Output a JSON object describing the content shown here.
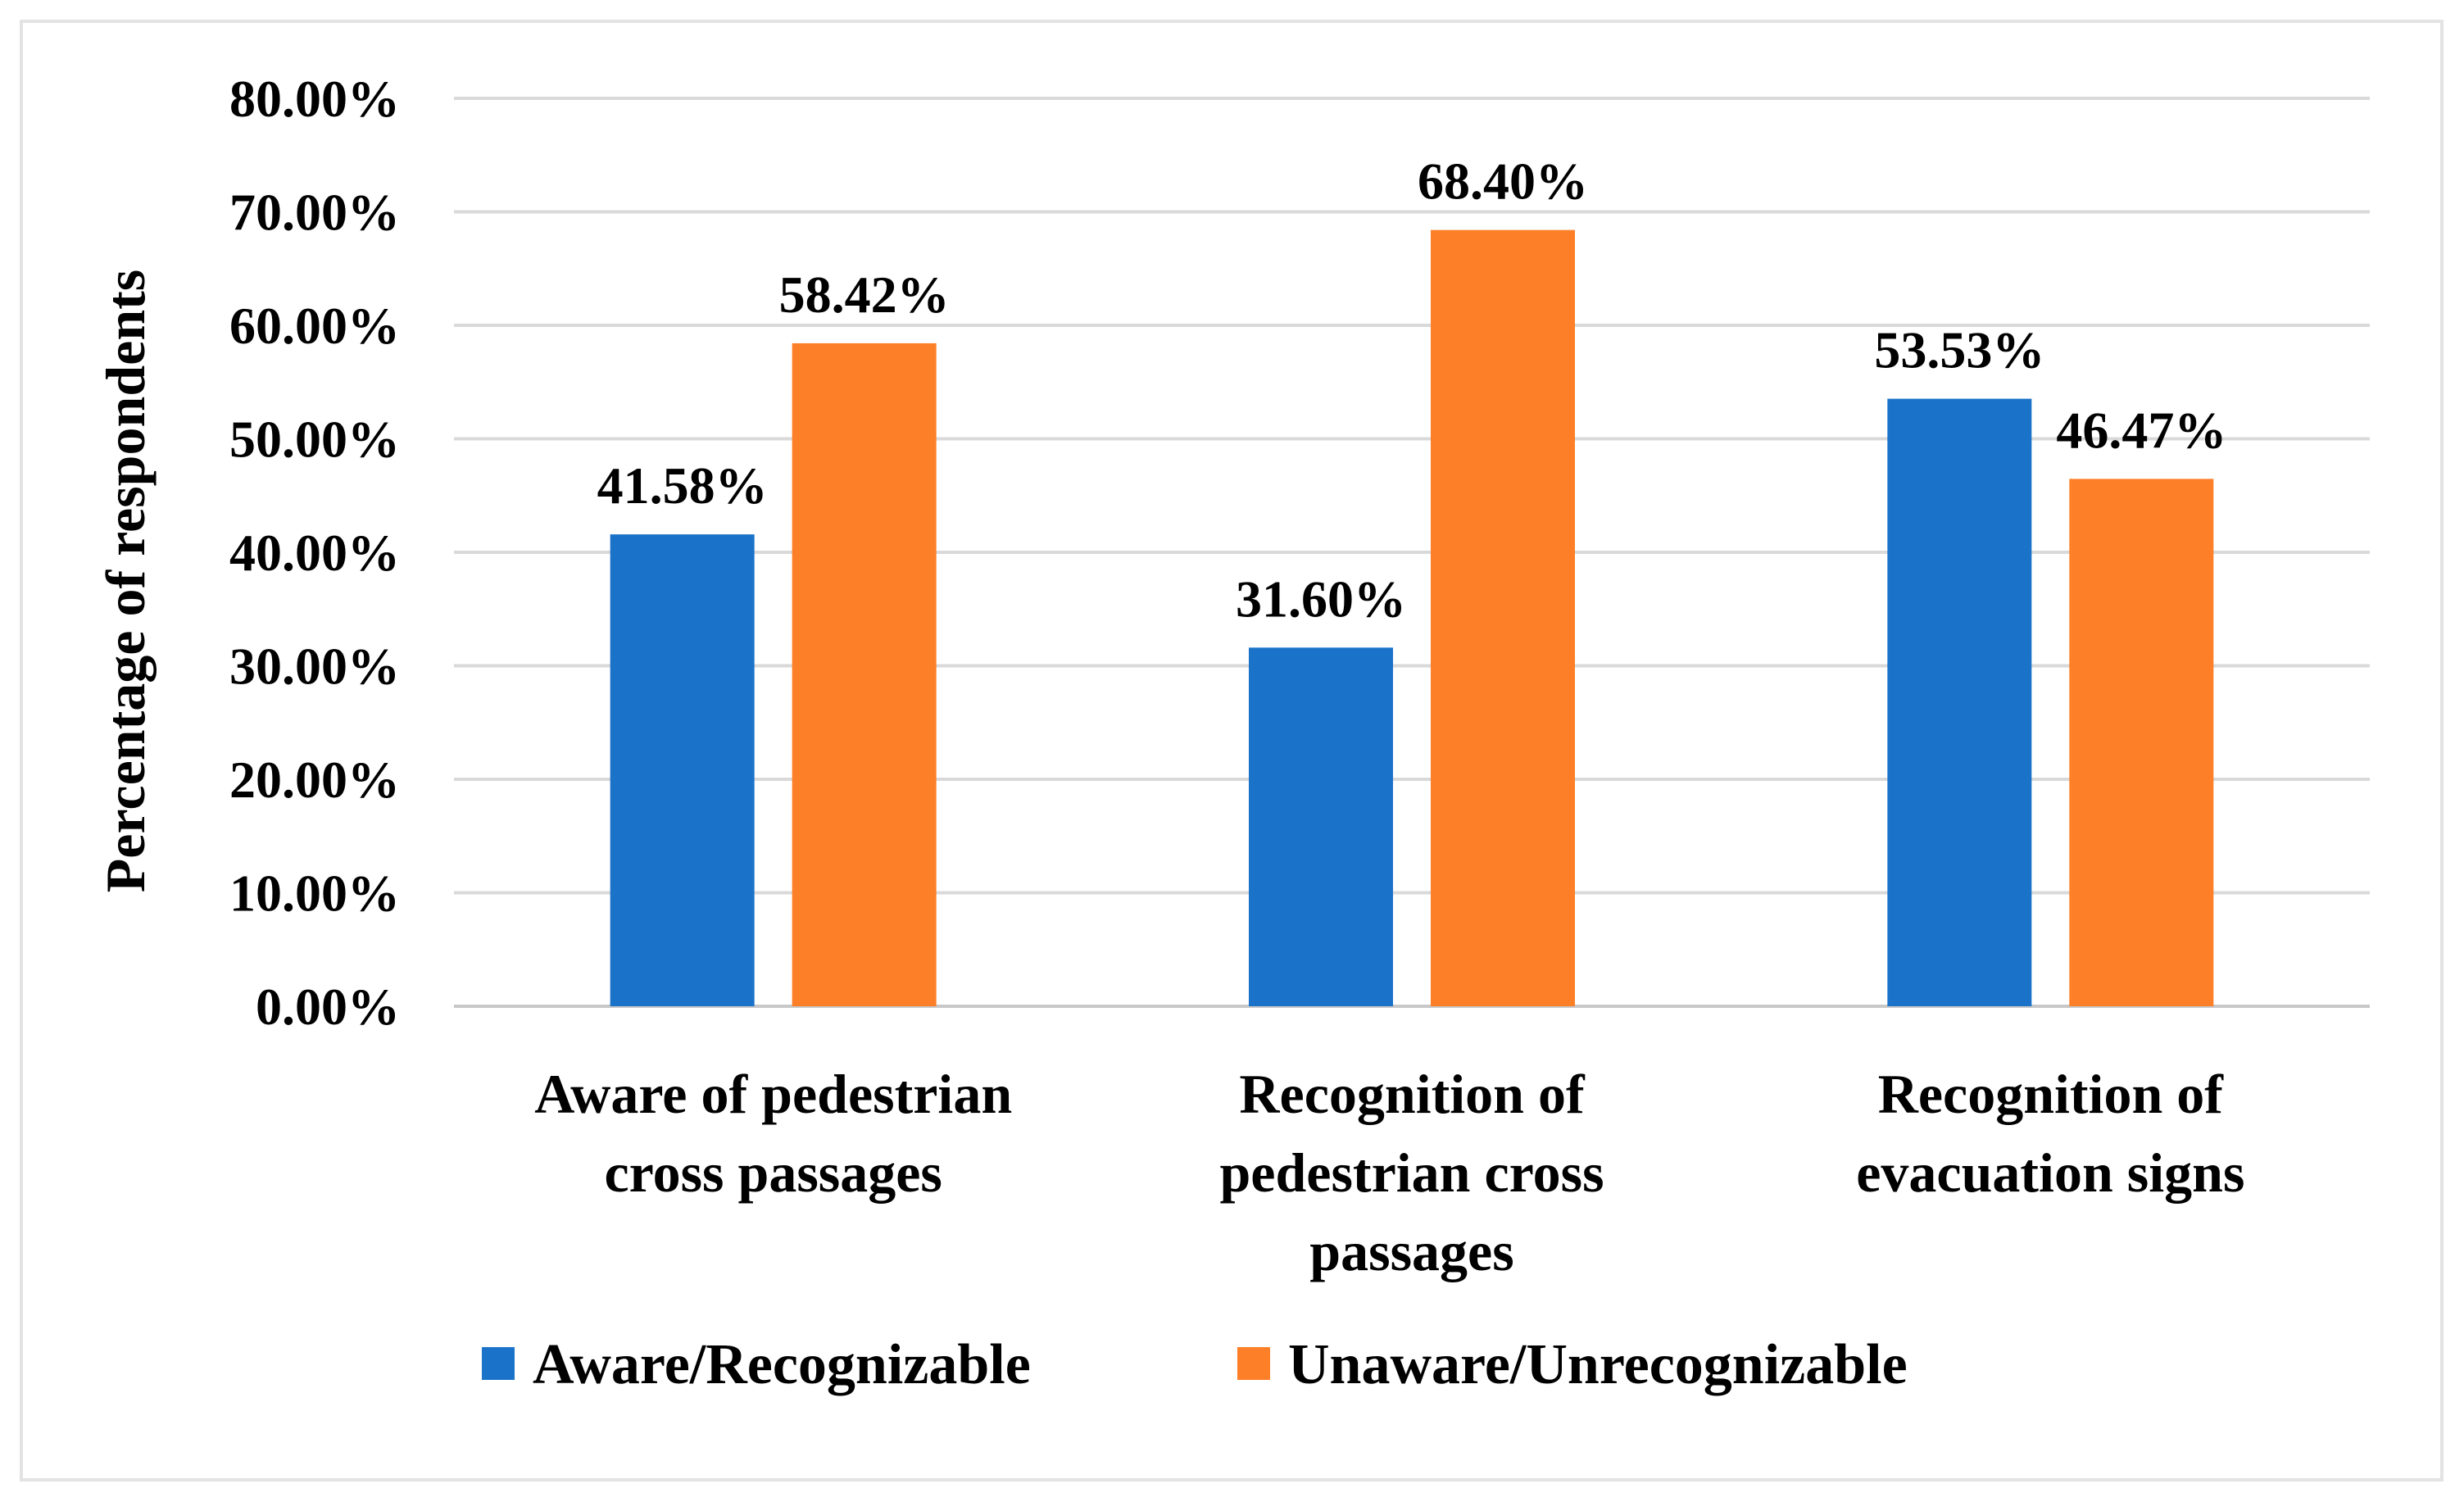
{
  "chart_data": {
    "type": "bar",
    "title": "",
    "xlabel": "",
    "ylabel": "Percentage of respondents",
    "ylim": [
      0,
      80
    ],
    "yticks": [
      0,
      10,
      20,
      30,
      40,
      50,
      60,
      70,
      80
    ],
    "ytick_labels": [
      "0.00%",
      "10.00%",
      "20.00%",
      "30.00%",
      "40.00%",
      "50.00%",
      "60.00%",
      "70.00%",
      "80.00%"
    ],
    "grid": true,
    "legend_position": "bottom",
    "categories": [
      [
        "Aware of pedestrian",
        "cross passages"
      ],
      [
        "Recognition of",
        "pedestrian cross",
        "passages"
      ],
      [
        "Recognition of",
        "evacuation signs"
      ]
    ],
    "series": [
      {
        "name": "Aware/Recognizable",
        "color": "#1b73c9",
        "values": [
          41.58,
          31.6,
          53.53
        ],
        "labels": [
          "41.58%",
          "31.60%",
          "53.53%"
        ]
      },
      {
        "name": "Unaware/Unrecognizable",
        "color": "#fd7f28",
        "values": [
          58.42,
          68.4,
          46.47
        ],
        "labels": [
          "58.42%",
          "68.40%",
          "46.47%"
        ]
      }
    ]
  }
}
